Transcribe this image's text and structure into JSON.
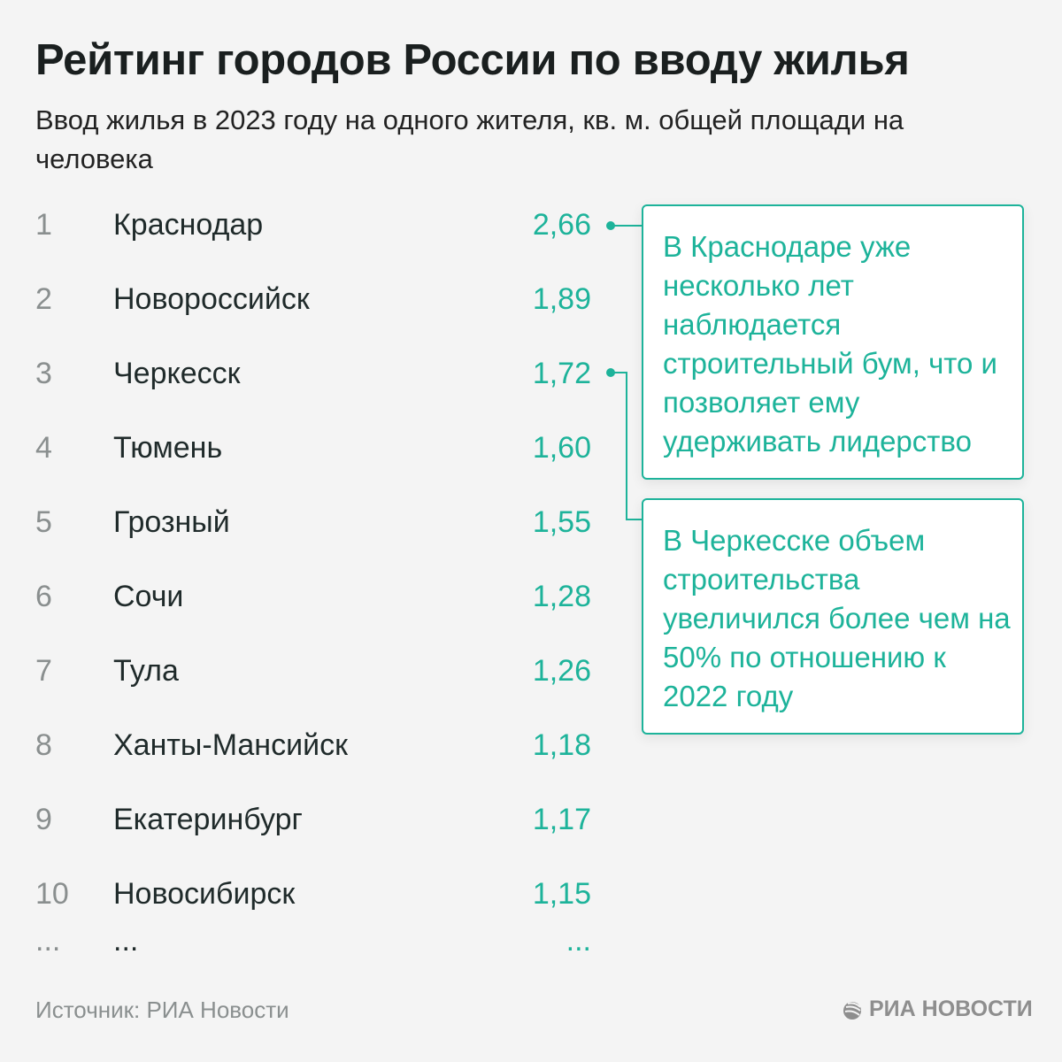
{
  "title": "Рейтинг городов России по вводу жилья",
  "subtitle": "Ввод жилья в 2023 году на одного жителя, кв. м. общей площади на человека",
  "rows": [
    {
      "rank": "1",
      "city": "Краснодар",
      "value": "2,66"
    },
    {
      "rank": "2",
      "city": "Новороссийск",
      "value": "1,89"
    },
    {
      "rank": "3",
      "city": "Черкесск",
      "value": "1,72"
    },
    {
      "rank": "4",
      "city": "Тюмень",
      "value": "1,60"
    },
    {
      "rank": "5",
      "city": "Грозный",
      "value": "1,55"
    },
    {
      "rank": "6",
      "city": "Сочи",
      "value": "1,28"
    },
    {
      "rank": "7",
      "city": "Тула",
      "value": "1,26"
    },
    {
      "rank": "8",
      "city": "Ханты-Мансийск",
      "value": "1,18"
    },
    {
      "rank": "9",
      "city": "Екатеринбург",
      "value": "1,17"
    },
    {
      "rank": "10",
      "city": "Новосибирск",
      "value": "1,15"
    },
    {
      "rank": "...",
      "city": "...",
      "value": "..."
    }
  ],
  "notes": [
    "В Краснодаре уже несколько лет наблюдается строительный бум, что и позволяет ему удерживать лидерство",
    "В Черкесске объем строительства увеличился более чем на 50% по отношению к 2022 году"
  ],
  "source": "Источник: РИА Новости",
  "logo": "РИА НОВОСТИ",
  "colors": {
    "accent": "#1db39a",
    "background": "#f4f4f4"
  }
}
